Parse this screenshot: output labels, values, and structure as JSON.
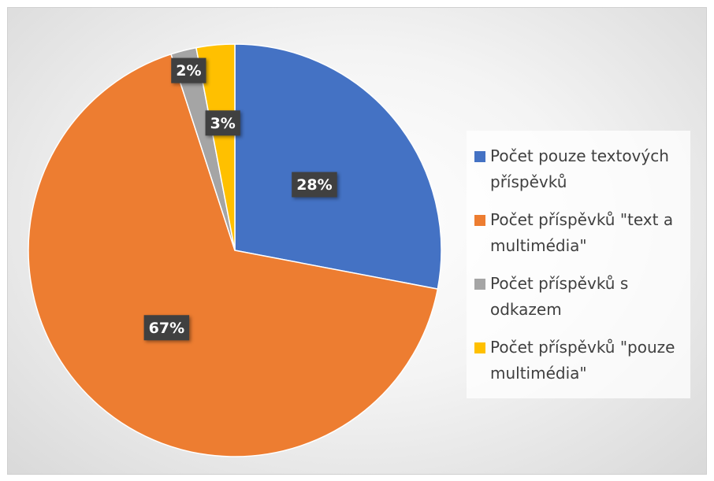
{
  "chart_data": {
    "type": "pie",
    "categories": [
      "Počet pouze textových příspěvků",
      "Počet příspěvků \"text a multimédia\"",
      "Počet příspěvků s odkazem",
      "Počet příspěvků \"pouze multimédia\""
    ],
    "values": [
      28,
      67,
      2,
      3
    ],
    "value_labels": [
      "28%",
      "67%",
      "2%",
      "3%"
    ],
    "colors": [
      "#4472c4",
      "#ed7d31",
      "#a5a5a5",
      "#ffc000"
    ],
    "legend": "right"
  }
}
